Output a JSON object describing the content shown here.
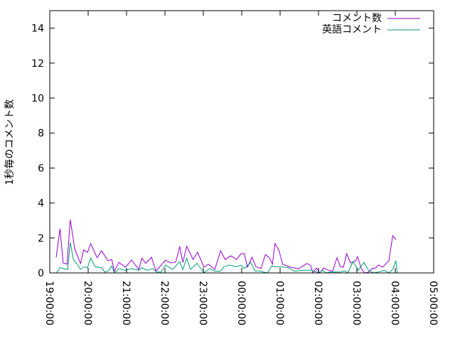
{
  "chart_data": {
    "type": "line",
    "title": "",
    "xlabel": "",
    "ylabel": "1秒毎のコメント数",
    "xlim": [
      "19:00:00",
      "05:00:00"
    ],
    "ylim": [
      0,
      15
    ],
    "x_ticks": [
      "19:00:00",
      "20:00:00",
      "21:00:00",
      "22:00:00",
      "23:00:00",
      "00:00:00",
      "01:00:00",
      "02:00:00",
      "03:00:00",
      "04:00:00",
      "05:00:00"
    ],
    "y_ticks": [
      "0",
      "2",
      "4",
      "6",
      "8",
      "10",
      "12",
      "14"
    ],
    "grid": false,
    "legend_position": "top-right",
    "series": [
      {
        "name": "コメント数",
        "color": "#9400d3",
        "points": [
          [
            "19:10",
            0.9
          ],
          [
            "19:16",
            2.53
          ],
          [
            "19:21",
            0.57
          ],
          [
            "19:27",
            0.5
          ],
          [
            "19:32",
            3.05
          ],
          [
            "19:39",
            1.38
          ],
          [
            "19:48",
            0.54
          ],
          [
            "19:53",
            1.31
          ],
          [
            "19:59",
            1.18
          ],
          [
            "20:04",
            1.67
          ],
          [
            "20:14",
            0.87
          ],
          [
            "20:21",
            1.27
          ],
          [
            "20:31",
            0.7
          ],
          [
            "20:37",
            0.77
          ],
          [
            "20:41",
            0.1
          ],
          [
            "20:48",
            0.6
          ],
          [
            "20:58",
            0.33
          ],
          [
            "21:08",
            0.73
          ],
          [
            "21:19",
            0.2
          ],
          [
            "21:24",
            0.85
          ],
          [
            "21:30",
            0.54
          ],
          [
            "21:39",
            0.9
          ],
          [
            "21:46",
            0.1
          ],
          [
            "22:01",
            0.73
          ],
          [
            "22:09",
            0.57
          ],
          [
            "22:17",
            0.62
          ],
          [
            "22:23",
            1.52
          ],
          [
            "22:28",
            0.6
          ],
          [
            "22:34",
            1.52
          ],
          [
            "22:44",
            0.77
          ],
          [
            "22:51",
            1.18
          ],
          [
            "23:01",
            0.33
          ],
          [
            "23:08",
            0.5
          ],
          [
            "23:18",
            0.2
          ],
          [
            "23:27",
            1.27
          ],
          [
            "23:34",
            0.77
          ],
          [
            "23:43",
            0.98
          ],
          [
            "23:52",
            0.77
          ],
          [
            "23:59",
            1.1
          ],
          [
            "00:04",
            1.1
          ],
          [
            "00:09",
            0.33
          ],
          [
            "00:16",
            0.9
          ],
          [
            "00:22",
            0.37
          ],
          [
            "00:30",
            0.24
          ],
          [
            "00:37",
            1.05
          ],
          [
            "00:43",
            0.87
          ],
          [
            "00:48",
            0.5
          ],
          [
            "00:52",
            1.68
          ],
          [
            "00:58",
            1.31
          ],
          [
            "01:04",
            0.5
          ],
          [
            "01:16",
            0.33
          ],
          [
            "01:29",
            0.24
          ],
          [
            "01:42",
            0.54
          ],
          [
            "01:48",
            0.41
          ],
          [
            "01:51",
            0
          ],
          [
            "01:57",
            0.28
          ],
          [
            "02:02",
            0
          ],
          [
            "02:08",
            0.28
          ],
          [
            "02:17",
            0.13
          ],
          [
            "02:22",
            0.1
          ],
          [
            "02:29",
            0.87
          ],
          [
            "02:34",
            0.37
          ],
          [
            "02:39",
            0.33
          ],
          [
            "02:44",
            1.1
          ],
          [
            "02:50",
            0.57
          ],
          [
            "02:58",
            0.69
          ],
          [
            "03:01",
            0.93
          ],
          [
            "03:07",
            0.24
          ],
          [
            "03:12",
            0
          ],
          [
            "03:18",
            0.04
          ],
          [
            "03:23",
            0.24
          ],
          [
            "03:29",
            0.28
          ],
          [
            "03:34",
            0.46
          ],
          [
            "03:40",
            0.33
          ],
          [
            "03:50",
            0.7
          ],
          [
            "03:56",
            2.13
          ],
          [
            "04:01",
            1.9
          ]
        ]
      },
      {
        "name": "英語コメント",
        "color": "#009e73",
        "points": [
          [
            "19:10",
            0
          ],
          [
            "19:16",
            0.3
          ],
          [
            "19:21",
            0.25
          ],
          [
            "19:28",
            0.2
          ],
          [
            "19:32",
            1.75
          ],
          [
            "19:37",
            0.75
          ],
          [
            "19:42",
            0.55
          ],
          [
            "19:48",
            0.2
          ],
          [
            "19:54",
            0.35
          ],
          [
            "19:59",
            0.3
          ],
          [
            "20:04",
            0.85
          ],
          [
            "20:11",
            0.35
          ],
          [
            "20:21",
            0.3
          ],
          [
            "20:26",
            0.05
          ],
          [
            "20:31",
            0.1
          ],
          [
            "20:37",
            0.4
          ],
          [
            "20:41",
            0
          ],
          [
            "20:48",
            0.25
          ],
          [
            "20:58",
            0.15
          ],
          [
            "21:08",
            0.25
          ],
          [
            "21:19",
            0.15
          ],
          [
            "21:24",
            0.3
          ],
          [
            "21:32",
            0.15
          ],
          [
            "21:41",
            0.25
          ],
          [
            "21:47",
            0.05
          ],
          [
            "21:54",
            0.05
          ],
          [
            "22:01",
            0.45
          ],
          [
            "22:12",
            0.2
          ],
          [
            "22:23",
            0.65
          ],
          [
            "22:28",
            0.2
          ],
          [
            "22:34",
            0.85
          ],
          [
            "22:40",
            0.2
          ],
          [
            "22:50",
            0.55
          ],
          [
            "23:01",
            0.02
          ],
          [
            "23:10",
            0.25
          ],
          [
            "23:18",
            0.1
          ],
          [
            "23:27",
            0.1
          ],
          [
            "23:32",
            0.35
          ],
          [
            "23:41",
            0.45
          ],
          [
            "23:51",
            0.35
          ],
          [
            "23:59",
            0.45
          ],
          [
            "00:04",
            0.25
          ],
          [
            "00:14",
            0.6
          ],
          [
            "00:21",
            0.1
          ],
          [
            "00:27",
            0.12
          ],
          [
            "00:40",
            0
          ],
          [
            "00:47",
            0.4
          ],
          [
            "00:54",
            0.35
          ],
          [
            "01:02",
            0.35
          ],
          [
            "01:13",
            0.3
          ],
          [
            "01:22",
            0.1
          ],
          [
            "01:36",
            0.15
          ],
          [
            "01:50",
            0.15
          ],
          [
            "02:01",
            0
          ],
          [
            "02:07",
            0.15
          ],
          [
            "02:12",
            0
          ],
          [
            "02:18",
            0.05
          ],
          [
            "02:34",
            0.05
          ],
          [
            "02:40",
            0.12
          ],
          [
            "02:46",
            0.02
          ],
          [
            "02:54",
            0.65
          ],
          [
            "03:02",
            0.15
          ],
          [
            "03:11",
            0.6
          ],
          [
            "03:19",
            0.1
          ],
          [
            "03:27",
            0
          ],
          [
            "03:33",
            0.05
          ],
          [
            "03:43",
            0.15
          ],
          [
            "03:50",
            0
          ],
          [
            "03:56",
            0.2
          ],
          [
            "04:01",
            0.7
          ],
          [
            "04:03",
            0
          ]
        ]
      }
    ]
  }
}
